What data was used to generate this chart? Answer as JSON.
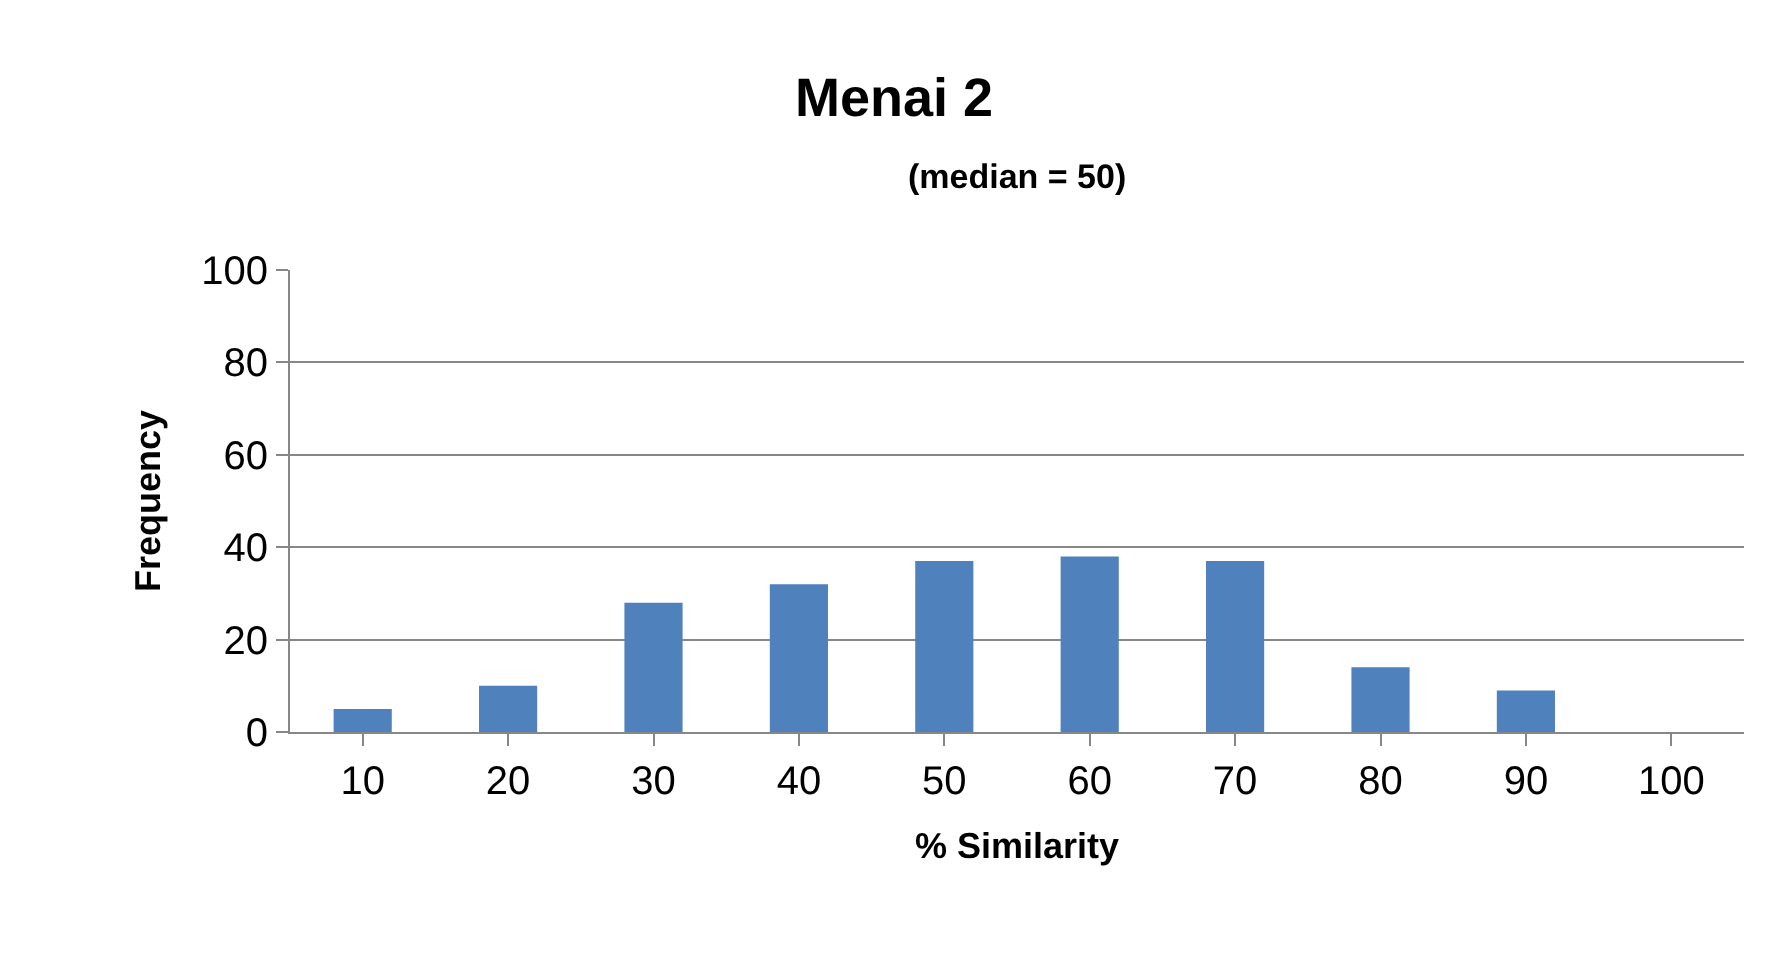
{
  "chart_data": {
    "type": "bar",
    "title": "Menai 2",
    "subtitle": "(median = 50)",
    "xlabel": "% Similarity",
    "ylabel": "Frequency",
    "categories": [
      "10",
      "20",
      "30",
      "40",
      "50",
      "60",
      "70",
      "80",
      "90",
      "100"
    ],
    "values": [
      5,
      10,
      28,
      32,
      37,
      38,
      37,
      14,
      9,
      0
    ],
    "color": "#4f81bd",
    "ylim": [
      0,
      100
    ],
    "yticks": [
      0,
      20,
      40,
      60,
      80,
      100
    ],
    "grid": "y"
  }
}
